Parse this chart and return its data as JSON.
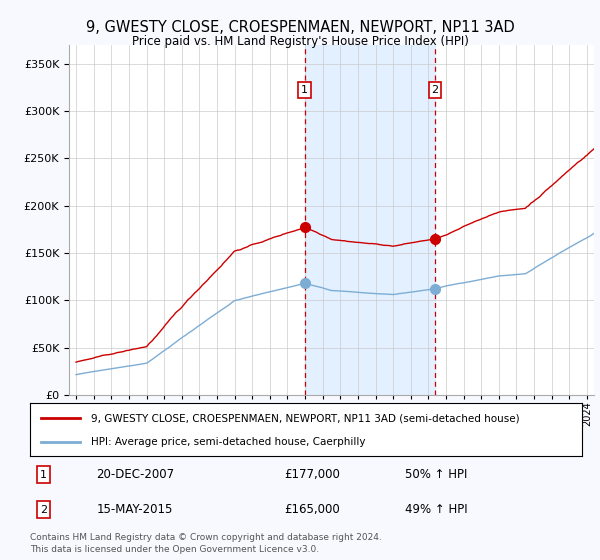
{
  "title": "9, GWESTY CLOSE, CROESPENMAEN, NEWPORT, NP11 3AD",
  "subtitle": "Price paid vs. HM Land Registry's House Price Index (HPI)",
  "red_line_label": "9, GWESTY CLOSE, CROESPENMAEN, NEWPORT, NP11 3AD (semi-detached house)",
  "blue_line_label": "HPI: Average price, semi-detached house, Caerphilly",
  "transaction1_date": "20-DEC-2007",
  "transaction1_price": "£177,000",
  "transaction1_hpi": "50% ↑ HPI",
  "transaction2_date": "15-MAY-2015",
  "transaction2_price": "£165,000",
  "transaction2_hpi": "49% ↑ HPI",
  "vline1_x": 2007.97,
  "vline2_x": 2015.37,
  "marker1_red_y": 177000,
  "marker1_blue_y": 118000,
  "marker2_red_y": 165000,
  "marker2_blue_y": 112000,
  "ylim": [
    0,
    370000
  ],
  "xlim_start": 1994.6,
  "xlim_end": 2024.4,
  "footer": "Contains HM Land Registry data © Crown copyright and database right 2024.\nThis data is licensed under the Open Government Licence v3.0.",
  "background_color": "#f8f8ff",
  "plot_bg": "#ffffff",
  "red_color": "#cc0000",
  "blue_color": "#7dadd4",
  "vline_color": "#cc0000",
  "shade_color": "#ddeeff",
  "grid_color": "#cccccc"
}
